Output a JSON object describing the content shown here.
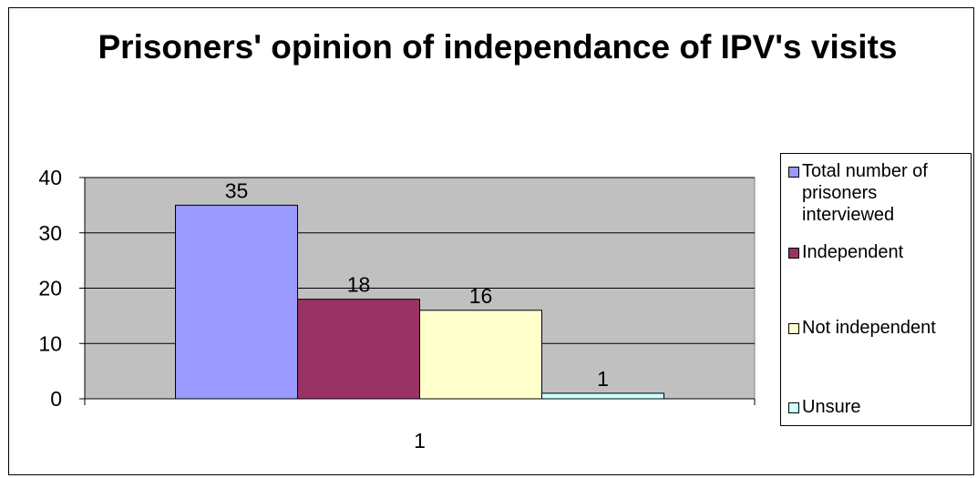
{
  "chart_data": {
    "type": "bar",
    "title": "Prisoners' opinion of independance of IPV's visits",
    "categories": [
      "1"
    ],
    "series": [
      {
        "name": "Total number of prisoners interviewed",
        "values": [
          35
        ],
        "color": "#9999ff"
      },
      {
        "name": "Independent",
        "values": [
          18
        ],
        "color": "#993366"
      },
      {
        "name": "Not independent",
        "values": [
          16
        ],
        "color": "#ffffcc"
      },
      {
        "name": "Unsure",
        "values": [
          1
        ],
        "color": "#ccffff"
      }
    ],
    "data_labels": [
      "35",
      "18",
      "16",
      "1"
    ],
    "y_ticks": [
      "0",
      "10",
      "20",
      "30",
      "40"
    ],
    "ylim": [
      0,
      40
    ],
    "grid": true,
    "legend_position": "right",
    "plot_background": "#c0c0c0",
    "xlabel": "",
    "ylabel": ""
  }
}
